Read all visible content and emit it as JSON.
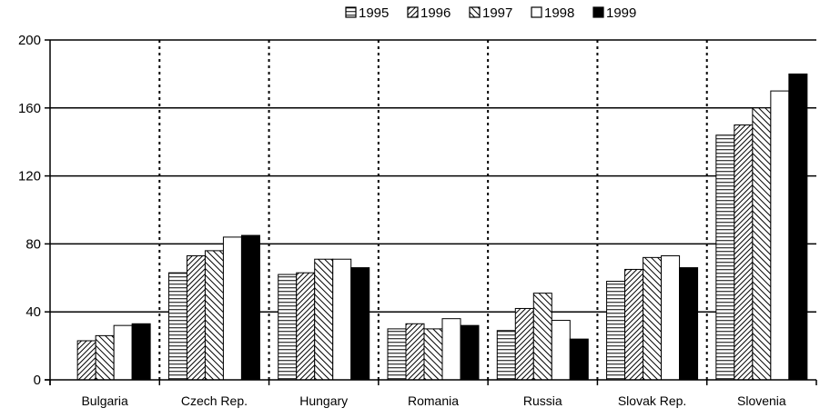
{
  "chart_data": {
    "type": "bar",
    "categories": [
      "Bulgaria",
      "Czech Rep.",
      "Hungary",
      "Romania",
      "Russia",
      "Slovak Rep.",
      "Slovenia"
    ],
    "series": [
      {
        "name": "1995",
        "pattern": "horizontal-lines",
        "values": [
          null,
          63,
          62,
          30,
          29,
          58,
          144
        ]
      },
      {
        "name": "1996",
        "pattern": "diagonal-dense",
        "values": [
          23,
          73,
          63,
          33,
          42,
          65,
          150
        ]
      },
      {
        "name": "1997",
        "pattern": "diagonal-hatch",
        "values": [
          26,
          76,
          71,
          30,
          51,
          72,
          160
        ]
      },
      {
        "name": "1998",
        "pattern": "white",
        "values": [
          32,
          84,
          71,
          36,
          35,
          73,
          170
        ]
      },
      {
        "name": "1999",
        "pattern": "black",
        "values": [
          33,
          85,
          66,
          32,
          24,
          66,
          180
        ]
      }
    ],
    "ylim": [
      0,
      200
    ],
    "yticks": [
      0,
      40,
      80,
      120,
      160,
      200
    ],
    "ytick_labels": [
      "0",
      "40",
      "80",
      "120",
      "160",
      "200"
    ],
    "title": "",
    "xlabel": "",
    "ylabel": "",
    "grid": "horizontal solid lines at y ticks, dotted vertical separators between categories",
    "legend_placement": "top-right",
    "colors": {
      "ink": "#000000",
      "background": "#ffffff"
    }
  }
}
